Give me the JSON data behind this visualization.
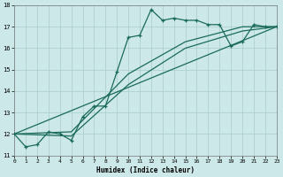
{
  "xlabel": "Humidex (Indice chaleur)",
  "xlim": [
    0,
    23
  ],
  "ylim": [
    11,
    18
  ],
  "xticks": [
    0,
    1,
    2,
    3,
    4,
    5,
    6,
    7,
    8,
    9,
    10,
    11,
    12,
    13,
    14,
    15,
    16,
    17,
    18,
    19,
    20,
    21,
    22,
    23
  ],
  "yticks": [
    11,
    12,
    13,
    14,
    15,
    16,
    17,
    18
  ],
  "bg_color": "#cce8e8",
  "line_color": "#1a6b5a",
  "grid_color": "#a8cccc",
  "series_main": {
    "x": [
      0,
      1,
      2,
      3,
      4,
      5,
      6,
      7,
      8,
      9,
      10,
      11,
      12,
      13,
      14,
      15,
      16,
      17,
      18,
      19,
      20,
      21,
      22,
      23
    ],
    "y": [
      12.0,
      11.4,
      11.5,
      12.1,
      12.0,
      11.7,
      12.8,
      13.3,
      13.3,
      14.9,
      16.5,
      16.6,
      17.8,
      17.3,
      17.4,
      17.3,
      17.3,
      17.1,
      17.1,
      16.1,
      16.3,
      17.1,
      17.0,
      17.0
    ]
  },
  "line_straight1": {
    "x": [
      0,
      23
    ],
    "y": [
      12.0,
      17.0
    ]
  },
  "line_straight2": {
    "x": [
      0,
      5,
      10,
      15,
      20,
      23
    ],
    "y": [
      12.0,
      11.9,
      14.3,
      16.0,
      16.8,
      17.0
    ]
  },
  "line_straight3": {
    "x": [
      0,
      5,
      10,
      15,
      20,
      23
    ],
    "y": [
      12.0,
      12.1,
      14.8,
      16.3,
      17.0,
      17.0
    ]
  }
}
